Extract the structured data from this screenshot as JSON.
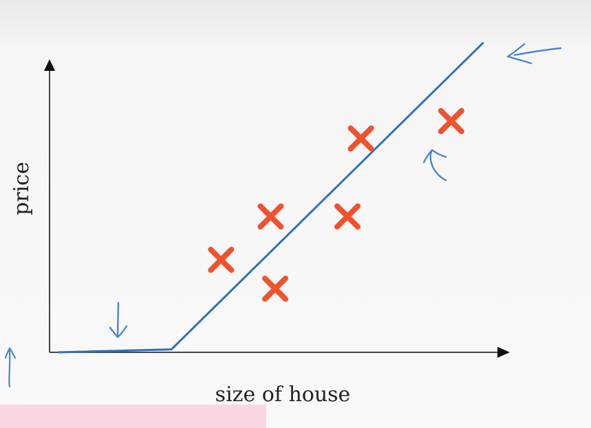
{
  "chart_data": {
    "type": "scatter",
    "title": "",
    "xlabel": "size of house",
    "ylabel": "price",
    "xlim": [
      0,
      10
    ],
    "ylim": [
      0,
      10
    ],
    "grid": false,
    "legend": "none",
    "series": [
      {
        "kind": "points",
        "marker": "x",
        "color": "#f0522e",
        "x": [
          3.8,
          5.0,
          4.9,
          6.6,
          6.9,
          8.9
        ],
        "y": [
          3.2,
          2.2,
          4.7,
          4.7,
          7.4,
          8.0
        ]
      },
      {
        "kind": "line",
        "color": "#2f6fb8",
        "x": [
          0.2,
          2.7,
          9.6
        ],
        "y": [
          0.0,
          0.1,
          10.7
        ]
      }
    ],
    "annotations": [
      {
        "kind": "arrow",
        "icon": "arrow-left-icon",
        "direction": "left",
        "color": "#4a86c8"
      },
      {
        "kind": "arrow",
        "icon": "arrow-up-curved-icon",
        "direction": "up",
        "color": "#4a86c8"
      },
      {
        "kind": "arrow",
        "icon": "arrow-down-icon",
        "direction": "down",
        "color": "#4a86c8"
      },
      {
        "kind": "arrow",
        "icon": "arrow-up-small-icon",
        "direction": "up",
        "color": "#4a86c8"
      }
    ]
  }
}
